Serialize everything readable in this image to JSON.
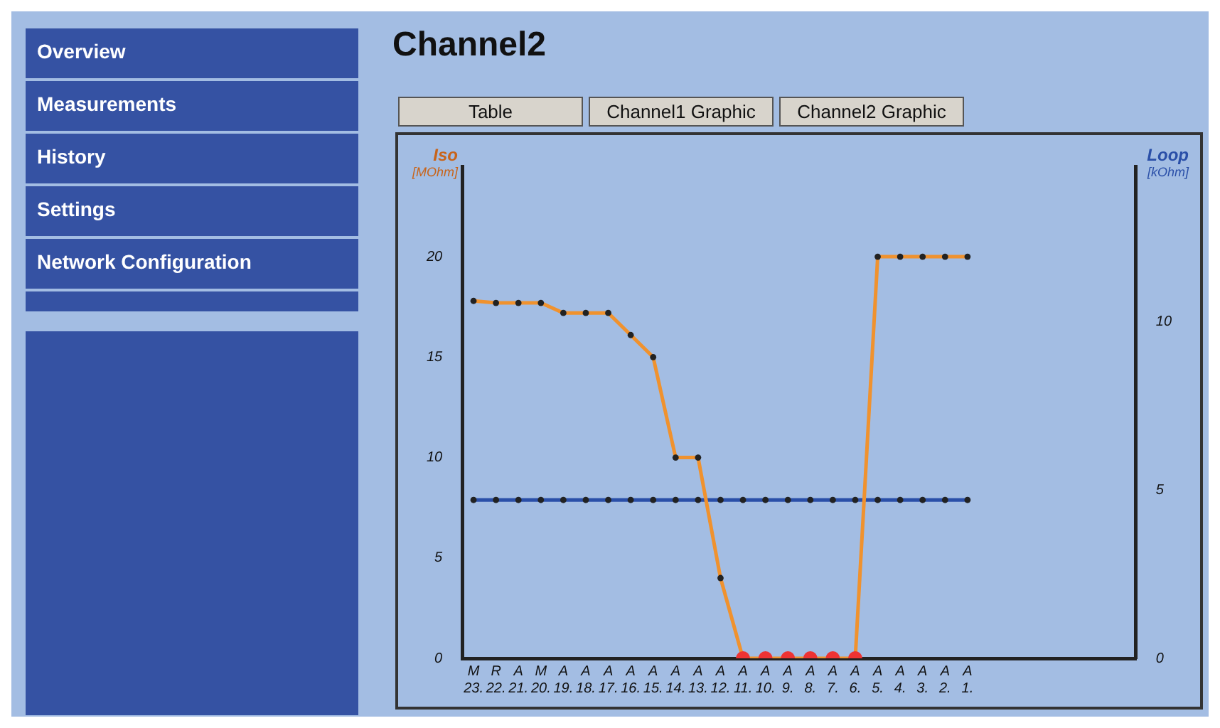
{
  "chart_data": {
    "type": "line",
    "title": "Channel2",
    "ylabel": "Iso [MOhm]",
    "y2label": "Loop [kOhm]",
    "annotations": [
      "Overview",
      "Measurements",
      "History",
      "Settings",
      "Network Configuration",
      "Table",
      "Channel1 Graphic",
      "Channel2 Graphic"
    ],
    "categories": [
      "M 23.",
      "R 22.",
      "A 21.",
      "M 20.",
      "A 19.",
      "A 18.",
      "A 17.",
      "A 16.",
      "A 15.",
      "A 14.",
      "A 13.",
      "A 12.",
      "A 11.",
      "A 10.",
      "A 9.",
      "A 8.",
      "A 7.",
      "A 6.",
      "A 5.",
      "A 4.",
      "A 3.",
      "A 2.",
      "A 1.",
      null,
      null,
      null,
      null,
      null,
      null,
      null
    ],
    "series": [
      {
        "color": "#f0922e",
        "colors": [
          "#222222",
          "#222222",
          "#222222",
          "#222222",
          "#222222",
          "#222222",
          "#222222",
          "#222222",
          "#222222",
          "#222222",
          "#222222",
          "#222222",
          "#ee3333",
          "#ee3333",
          "#ee3333",
          "#ee3333",
          "#ee3333",
          "#ee3333",
          "#222222",
          "#222222",
          "#222222",
          "#222222",
          "#222222",
          null,
          null,
          null,
          null,
          null,
          null,
          null
        ],
        "values": [
          17.8,
          17.7,
          17.7,
          17.7,
          17.2,
          17.2,
          17.2,
          16.1,
          15,
          10,
          10,
          4,
          0,
          0,
          0,
          0,
          0,
          0,
          20,
          20,
          20,
          20,
          20,
          null,
          null,
          null,
          null,
          null,
          null,
          null
        ]
      },
      {
        "color": "#2a4fa8",
        "axis": "y2",
        "colors": [
          "#222222",
          "#222222",
          "#222222",
          "#222222",
          "#222222",
          "#222222",
          "#222222",
          "#222222",
          "#222222",
          "#222222",
          "#222222",
          "#222222",
          "#222222",
          "#222222",
          "#222222",
          "#222222",
          "#222222",
          "#222222",
          "#222222",
          "#222222",
          "#222222",
          "#222222",
          "#222222",
          null,
          null,
          null,
          null,
          null,
          null,
          null
        ],
        "values": [
          4.7,
          4.7,
          4.7,
          4.7,
          4.7,
          4.7,
          4.7,
          4.7,
          4.7,
          4.7,
          4.7,
          4.7,
          4.7,
          4.7,
          4.7,
          4.7,
          4.7,
          4.7,
          4.7,
          4.7,
          4.7,
          4.7,
          4.7,
          null,
          null,
          null,
          null,
          null,
          null,
          null
        ]
      }
    ],
    "ylim": [
      0,
      24.5
    ],
    "yticks": [
      0,
      5,
      10,
      15,
      20
    ],
    "y2lim": [
      0,
      14.6
    ],
    "y2ticks": [
      0,
      5,
      10
    ],
    "grid": false,
    "legend": false,
    "marker": "circle",
    "line_style": "solid"
  }
}
